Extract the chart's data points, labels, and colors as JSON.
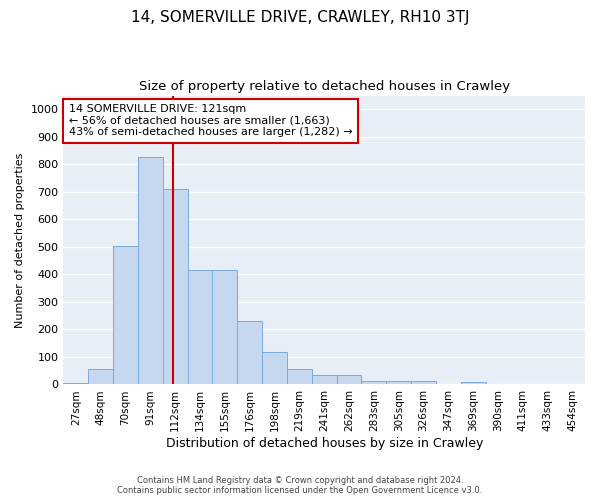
{
  "title": "14, SOMERVILLE DRIVE, CRAWLEY, RH10 3TJ",
  "subtitle": "Size of property relative to detached houses in Crawley",
  "xlabel": "Distribution of detached houses by size in Crawley",
  "ylabel": "Number of detached properties",
  "footnote": "Contains HM Land Registry data © Crown copyright and database right 2024.\nContains public sector information licensed under the Open Government Licence v3.0.",
  "bar_labels": [
    "27sqm",
    "48sqm",
    "70sqm",
    "91sqm",
    "112sqm",
    "134sqm",
    "155sqm",
    "176sqm",
    "198sqm",
    "219sqm",
    "241sqm",
    "262sqm",
    "283sqm",
    "305sqm",
    "326sqm",
    "347sqm",
    "369sqm",
    "390sqm",
    "411sqm",
    "433sqm",
    "454sqm"
  ],
  "bar_values": [
    5,
    57,
    505,
    825,
    710,
    415,
    415,
    232,
    117,
    57,
    35,
    35,
    12,
    12,
    12,
    0,
    10,
    0,
    0,
    0,
    0
  ],
  "bar_color": "#c5d8f0",
  "bar_edge_color": "#7aabdb",
  "bg_color": "#e8eef5",
  "grid_color": "#ffffff",
  "annotation_line1": "14 SOMERVILLE DRIVE: 121sqm",
  "annotation_line2": "← 56% of detached houses are smaller (1,663)",
  "annotation_line3": "43% of semi-detached houses are larger (1,282) →",
  "annotation_box_color": "#ffffff",
  "annotation_box_edge": "#cc0000",
  "vline_color": "#cc0000",
  "ylim": [
    0,
    1050
  ],
  "yticks": [
    0,
    100,
    200,
    300,
    400,
    500,
    600,
    700,
    800,
    900,
    1000
  ],
  "title_fontsize": 11,
  "subtitle_fontsize": 9.5,
  "ylabel_fontsize": 8,
  "xlabel_fontsize": 9,
  "tick_fontsize": 7.5,
  "annotation_fontsize": 8,
  "footnote_fontsize": 6
}
